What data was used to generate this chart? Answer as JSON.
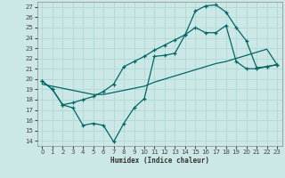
{
  "xlabel": "Humidex (Indice chaleur)",
  "bg_color": "#cce8e6",
  "grid_color": "#b0d8d5",
  "line_color": "#006666",
  "xlim": [
    -0.5,
    23.5
  ],
  "ylim": [
    13.5,
    27.5
  ],
  "xticks": [
    0,
    1,
    2,
    3,
    4,
    5,
    6,
    7,
    8,
    9,
    10,
    11,
    12,
    13,
    14,
    15,
    16,
    17,
    18,
    19,
    20,
    21,
    22,
    23
  ],
  "yticks": [
    14,
    15,
    16,
    17,
    18,
    19,
    20,
    21,
    22,
    23,
    24,
    25,
    26,
    27
  ],
  "series1_x": [
    0,
    1,
    2,
    3,
    4,
    5,
    6,
    7,
    8,
    9,
    10,
    11,
    12,
    13,
    14,
    15,
    16,
    17,
    18,
    19,
    20,
    21,
    22,
    23
  ],
  "series1_y": [
    19.8,
    19.0,
    17.5,
    17.2,
    15.5,
    15.7,
    15.5,
    13.9,
    15.7,
    17.2,
    18.1,
    22.2,
    22.3,
    22.5,
    24.3,
    25.0,
    24.5,
    24.5,
    25.2,
    21.7,
    21.0,
    21.0,
    21.2,
    21.4
  ],
  "series2_x": [
    0,
    1,
    2,
    3,
    4,
    5,
    6,
    7,
    8,
    9,
    10,
    11,
    12,
    13,
    14,
    15,
    16,
    17,
    18,
    19,
    20,
    21,
    22,
    23
  ],
  "series2_y": [
    19.5,
    19.3,
    19.1,
    18.9,
    18.7,
    18.5,
    18.5,
    18.7,
    18.9,
    19.1,
    19.3,
    19.7,
    20.0,
    20.3,
    20.6,
    20.9,
    21.2,
    21.5,
    21.7,
    22.0,
    22.3,
    22.6,
    22.9,
    21.4
  ],
  "series3_x": [
    0,
    1,
    2,
    3,
    4,
    5,
    6,
    7,
    8,
    9,
    10,
    11,
    12,
    13,
    14,
    15,
    16,
    17,
    18,
    19,
    20,
    21,
    22,
    23
  ],
  "series3_y": [
    19.8,
    19.0,
    17.5,
    17.7,
    18.0,
    18.3,
    18.8,
    19.5,
    21.2,
    21.7,
    22.2,
    22.8,
    23.3,
    23.8,
    24.3,
    26.6,
    27.1,
    27.2,
    26.5,
    25.0,
    23.7,
    21.1,
    21.2,
    21.4
  ]
}
